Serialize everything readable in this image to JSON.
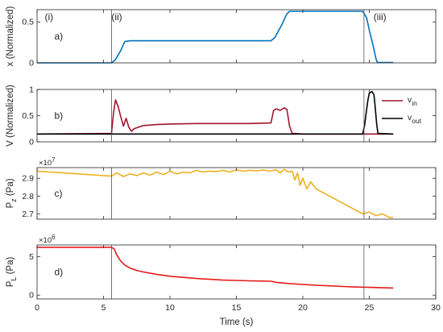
{
  "chart_data": {
    "type": "line",
    "xlabel": "Time (s)",
    "xlim": [
      0,
      30
    ],
    "xticks": [
      0,
      5,
      10,
      15,
      20,
      25,
      30
    ],
    "phase_markers": [
      5.6,
      24.6
    ],
    "phase_labels": [
      {
        "text": "(i)",
        "x": 0.9
      },
      {
        "text": "(ii)",
        "x": 6.0
      },
      {
        "text": "(iii)",
        "x": 25.8
      }
    ],
    "colors": {
      "blue": "#0072BD",
      "darkred": "#A2142F",
      "black": "#000000",
      "orange": "#EDB120",
      "red": "#E61A1A"
    },
    "panels": [
      {
        "id": "a",
        "letter": "a)",
        "ylabel": "x (Normalized)",
        "ylim": [
          0,
          0.65
        ],
        "yticks": [
          0,
          0.5
        ],
        "exponent": "",
        "series": [
          {
            "color": "#0072BD",
            "x": [
              0,
              5.6,
              5.9,
              6.3,
              6.6,
              7.0,
              17.6,
              17.9,
              18.4,
              18.8,
              19.0,
              24.5,
              24.8,
              25.0,
              25.3,
              25.5,
              25.6,
              26.8
            ],
            "y": [
              0,
              0,
              0.04,
              0.15,
              0.26,
              0.27,
              0.27,
              0.31,
              0.46,
              0.6,
              0.63,
              0.63,
              0.55,
              0.4,
              0.2,
              0.05,
              0.005,
              0.005
            ]
          }
        ]
      },
      {
        "id": "b",
        "letter": "b)",
        "ylabel": "V (Normalized)",
        "ylim": [
          0,
          1
        ],
        "yticks": [
          0,
          0.5,
          1
        ],
        "exponent": "",
        "series": [
          {
            "name": "v",
            "sub": "in",
            "color": "#A2142F",
            "x": [
              0,
              5.6,
              5.75,
              5.9,
              6.1,
              6.3,
              6.5,
              6.7,
              6.9,
              7.1,
              7.3,
              8.0,
              9.0,
              10.0,
              12.0,
              14.0,
              16.0,
              17.6,
              17.8,
              18.0,
              18.3,
              18.6,
              18.8,
              19.0,
              19.2,
              20.0,
              24.5,
              26.8
            ],
            "y": [
              0.15,
              0.16,
              0.55,
              0.8,
              0.68,
              0.48,
              0.3,
              0.45,
              0.28,
              0.2,
              0.25,
              0.31,
              0.33,
              0.34,
              0.35,
              0.35,
              0.35,
              0.36,
              0.6,
              0.63,
              0.6,
              0.65,
              0.62,
              0.3,
              0.16,
              0.15,
              0.15,
              0.15
            ]
          },
          {
            "name": "v",
            "sub": "out",
            "color": "#000000",
            "x": [
              0,
              24.5,
              24.65,
              24.8,
              24.9,
              25.0,
              25.2,
              25.35,
              25.45,
              25.55,
              25.65,
              26.8
            ],
            "y": [
              0.15,
              0.15,
              0.32,
              0.62,
              0.8,
              0.93,
              0.96,
              0.9,
              0.65,
              0.35,
              0.16,
              0.15
            ]
          }
        ]
      },
      {
        "id": "c",
        "letter": "c)",
        "ylabel": "P",
        "ylabel_sub": "z",
        "ylabel_unit": "(Pa)",
        "ylim": [
          2.67,
          2.96
        ],
        "yticks": [
          2.7,
          2.8,
          2.9
        ],
        "exponent": "7",
        "series": [
          {
            "color": "#EDB120",
            "x": [
              0,
              1,
              2,
              3,
              4,
              5,
              5.6,
              6,
              6.5,
              7,
              7.5,
              8,
              8.5,
              9,
              9.5,
              10,
              10.5,
              11,
              11.5,
              12,
              12.5,
              13,
              13.5,
              14,
              14.5,
              15,
              15.5,
              16,
              16.5,
              17,
              17.5,
              18,
              18.3,
              18.6,
              18.9,
              19.2,
              19.4,
              19.6,
              19.8,
              20.0,
              20.3,
              20.6,
              21,
              21.5,
              22,
              22.5,
              23,
              23.5,
              24,
              24.5,
              25,
              25.5,
              26,
              26.5,
              26.8
            ],
            "y": [
              2.94,
              2.935,
              2.93,
              2.925,
              2.92,
              2.915,
              2.912,
              2.93,
              2.91,
              2.925,
              2.915,
              2.93,
              2.918,
              2.935,
              2.92,
              2.94,
              2.925,
              2.935,
              2.93,
              2.945,
              2.935,
              2.94,
              2.938,
              2.945,
              2.935,
              2.947,
              2.94,
              2.945,
              2.942,
              2.947,
              2.94,
              2.948,
              2.93,
              2.95,
              2.935,
              2.94,
              2.89,
              2.93,
              2.86,
              2.9,
              2.84,
              2.88,
              2.84,
              2.82,
              2.8,
              2.78,
              2.76,
              2.74,
              2.72,
              2.7,
              2.71,
              2.69,
              2.7,
              2.68,
              2.68
            ]
          }
        ]
      },
      {
        "id": "d",
        "letter": "d)",
        "ylabel": "P",
        "ylabel_sub": "L",
        "ylabel_unit": "(Pa)",
        "ylim": [
          -0.5,
          6.5
        ],
        "yticks": [
          0,
          5
        ],
        "exponent": "6",
        "series": [
          {
            "color": "#E61A1A",
            "x": [
              0,
              5.6,
              5.8,
              6.0,
              6.3,
              6.6,
              7.0,
              7.5,
              8,
              9,
              10,
              11,
              12,
              13,
              14,
              15,
              16,
              17,
              17.6,
              18,
              19,
              20,
              21,
              22,
              23,
              24,
              25,
              26,
              26.8
            ],
            "y": [
              6.2,
              6.2,
              6.0,
              5.2,
              4.4,
              3.9,
              3.5,
              3.2,
              3.0,
              2.7,
              2.45,
              2.3,
              2.15,
              2.05,
              1.95,
              1.9,
              1.85,
              1.82,
              1.8,
              1.65,
              1.5,
              1.38,
              1.28,
              1.2,
              1.12,
              1.05,
              1.0,
              0.95,
              0.92
            ]
          }
        ]
      }
    ]
  }
}
